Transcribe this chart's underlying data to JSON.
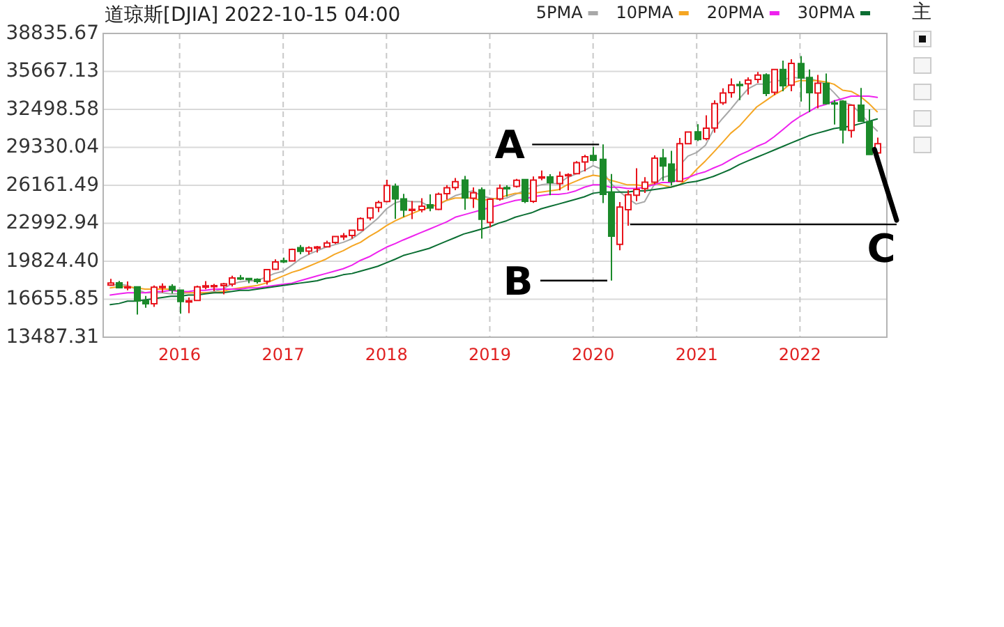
{
  "chart_data": {
    "type": "candlestick",
    "title": "道琼斯[DJIA] 2022-10-15 04:00",
    "x": [
      "2015-05",
      "2015-06",
      "2015-07",
      "2015-08",
      "2015-09",
      "2015-10",
      "2015-11",
      "2015-12",
      "2016-01",
      "2016-02",
      "2016-03",
      "2016-04",
      "2016-05",
      "2016-06",
      "2016-07",
      "2016-08",
      "2016-09",
      "2016-10",
      "2016-11",
      "2016-12",
      "2017-01",
      "2017-02",
      "2017-03",
      "2017-04",
      "2017-05",
      "2017-06",
      "2017-07",
      "2017-08",
      "2017-09",
      "2017-10",
      "2017-11",
      "2017-12",
      "2018-01",
      "2018-02",
      "2018-03",
      "2018-04",
      "2018-05",
      "2018-06",
      "2018-07",
      "2018-08",
      "2018-09",
      "2018-10",
      "2018-11",
      "2018-12",
      "2019-01",
      "2019-02",
      "2019-03",
      "2019-04",
      "2019-05",
      "2019-06",
      "2019-07",
      "2019-08",
      "2019-09",
      "2019-10",
      "2019-11",
      "2019-12",
      "2020-01",
      "2020-02",
      "2020-03",
      "2020-04",
      "2020-05",
      "2020-06",
      "2020-07",
      "2020-08",
      "2020-09",
      "2020-10",
      "2020-11",
      "2020-12",
      "2021-01",
      "2021-02",
      "2021-03",
      "2021-04",
      "2021-05",
      "2021-06",
      "2021-07",
      "2021-08",
      "2021-09",
      "2021-10",
      "2021-11",
      "2021-12",
      "2022-01",
      "2022-02",
      "2022-03",
      "2022-04",
      "2022-05",
      "2022-06",
      "2022-07",
      "2022-08",
      "2022-09",
      "2022-10"
    ],
    "ohlc": [
      [
        17840,
        18350,
        17790,
        18010
      ],
      [
        18020,
        18180,
        17580,
        17620
      ],
      [
        17640,
        18140,
        17400,
        17690
      ],
      [
        17690,
        17740,
        15370,
        16530
      ],
      [
        16510,
        16930,
        15940,
        16280
      ],
      [
        16280,
        17800,
        16010,
        17660
      ],
      [
        17680,
        17980,
        17210,
        17720
      ],
      [
        17720,
        17900,
        17140,
        17430
      ],
      [
        17410,
        17410,
        15450,
        16470
      ],
      [
        16450,
        16800,
        15500,
        16520
      ],
      [
        16550,
        17790,
        16550,
        17690
      ],
      [
        17660,
        18170,
        17480,
        17770
      ],
      [
        17780,
        17940,
        17330,
        17790
      ],
      [
        17790,
        18020,
        17060,
        17930
      ],
      [
        17920,
        18620,
        17710,
        18430
      ],
      [
        18430,
        18670,
        18250,
        18400
      ],
      [
        18390,
        18450,
        17990,
        18310
      ],
      [
        18310,
        18400,
        17960,
        18140
      ],
      [
        18160,
        19160,
        17880,
        19120
      ],
      [
        19150,
        19990,
        19080,
        19760
      ],
      [
        19870,
        20130,
        19680,
        19860
      ],
      [
        19850,
        20890,
        19830,
        20810
      ],
      [
        20960,
        21170,
        20410,
        20660
      ],
      [
        20670,
        21070,
        20380,
        20940
      ],
      [
        20960,
        21110,
        20550,
        21010
      ],
      [
        21030,
        21540,
        20990,
        21350
      ],
      [
        21390,
        21930,
        21280,
        21890
      ],
      [
        21920,
        22180,
        21600,
        21950
      ],
      [
        21980,
        22420,
        21710,
        22410
      ],
      [
        22420,
        23490,
        22420,
        23380
      ],
      [
        23440,
        24330,
        23240,
        24270
      ],
      [
        24310,
        24880,
        23920,
        24720
      ],
      [
        24810,
        26620,
        24740,
        26150
      ],
      [
        26080,
        26310,
        23360,
        25030
      ],
      [
        25030,
        25450,
        23510,
        24100
      ],
      [
        24080,
        24860,
        23340,
        24160
      ],
      [
        24120,
        25090,
        23910,
        24420
      ],
      [
        24540,
        25400,
        24000,
        24270
      ],
      [
        24160,
        25550,
        24080,
        25420
      ],
      [
        25460,
        26170,
        24970,
        25960
      ],
      [
        25970,
        26770,
        25750,
        26460
      ],
      [
        26600,
        26950,
        24120,
        25120
      ],
      [
        25080,
        25980,
        24270,
        25540
      ],
      [
        25780,
        25980,
        21710,
        23330
      ],
      [
        23060,
        25080,
        22640,
        25000
      ],
      [
        25030,
        26240,
        24880,
        25920
      ],
      [
        25970,
        26160,
        25210,
        25930
      ],
      [
        26080,
        26700,
        25970,
        26590
      ],
      [
        26640,
        26640,
        24680,
        24820
      ],
      [
        24820,
        26910,
        24690,
        26600
      ],
      [
        26810,
        27400,
        26590,
        26860
      ],
      [
        26860,
        27090,
        25340,
        26400
      ],
      [
        26300,
        27310,
        25740,
        26920
      ],
      [
        26960,
        27160,
        25740,
        27050
      ],
      [
        27140,
        28180,
        27080,
        28050
      ],
      [
        28110,
        28700,
        27330,
        28540
      ],
      [
        28640,
        29370,
        28170,
        28260
      ],
      [
        28320,
        29570,
        24680,
        25410
      ],
      [
        25590,
        27100,
        18210,
        21920
      ],
      [
        21230,
        24760,
        20740,
        24350
      ],
      [
        24120,
        25760,
        22790,
        25380
      ],
      [
        25340,
        27580,
        24840,
        25810
      ],
      [
        25880,
        26840,
        25520,
        26430
      ],
      [
        26420,
        28660,
        26250,
        28430
      ],
      [
        28440,
        29200,
        26540,
        27780
      ],
      [
        27940,
        29040,
        26140,
        26500
      ],
      [
        26500,
        30120,
        26500,
        29640
      ],
      [
        29640,
        30640,
        29570,
        30610
      ],
      [
        30630,
        31270,
        29860,
        29980
      ],
      [
        30050,
        32010,
        29910,
        30930
      ],
      [
        30950,
        33260,
        30550,
        32980
      ],
      [
        33050,
        34260,
        32880,
        33870
      ],
      [
        33900,
        35090,
        33470,
        34530
      ],
      [
        34580,
        34850,
        33270,
        34500
      ],
      [
        34630,
        35170,
        33740,
        34940
      ],
      [
        35000,
        35630,
        34690,
        35360
      ],
      [
        35370,
        35510,
        33610,
        33840
      ],
      [
        33920,
        35890,
        33690,
        35820
      ],
      [
        35830,
        36570,
        34010,
        34480
      ],
      [
        34520,
        36680,
        34010,
        36340
      ],
      [
        36320,
        36950,
        33150,
        35130
      ],
      [
        35160,
        35820,
        32270,
        33890
      ],
      [
        33870,
        35370,
        32580,
        34680
      ],
      [
        34660,
        35490,
        32910,
        32980
      ],
      [
        33040,
        33270,
        31230,
        32990
      ],
      [
        33160,
        33270,
        29650,
        30780
      ],
      [
        30740,
        32910,
        30140,
        32850
      ],
      [
        32850,
        34280,
        31510,
        31510
      ],
      [
        31450,
        32500,
        28720,
        28730
      ],
      [
        28860,
        30140,
        28660,
        29630
      ]
    ],
    "series": [
      {
        "name": "5PMA",
        "type": "line",
        "color": "#a8a8a8",
        "values": [
          17800,
          17900,
          17800,
          17500,
          17200,
          17200,
          17200,
          17100,
          17100,
          17200,
          17200,
          17200,
          17300,
          17500,
          17900,
          18100,
          18200,
          18200,
          18500,
          18800,
          19000,
          19500,
          20000,
          20400,
          20700,
          21000,
          21200,
          21400,
          21700,
          22200,
          22800,
          23400,
          24200,
          24700,
          24900,
          24800,
          24800,
          24400,
          24500,
          24900,
          25300,
          25500,
          25700,
          25300,
          25100,
          25000,
          25100,
          25400,
          25700,
          26000,
          26200,
          26300,
          26300,
          26800,
          27100,
          27400,
          27800,
          27500,
          26400,
          25700,
          25100,
          24600,
          24800,
          26100,
          26800,
          27000,
          27800,
          28600,
          28900,
          29500,
          30800,
          31700,
          32500,
          33400,
          34200,
          34600,
          34600,
          34900,
          34900,
          35200,
          35100,
          35100,
          34900,
          34600,
          33900,
          33100,
          32900,
          32200,
          31400,
          30700
        ]
      },
      {
        "name": "10PMA",
        "type": "line",
        "color": "#f5a623",
        "values": [
          17600,
          17700,
          17700,
          17600,
          17500,
          17500,
          17500,
          17500,
          17300,
          17200,
          17200,
          17200,
          17200,
          17300,
          17500,
          17600,
          17700,
          17800,
          18000,
          18300,
          18600,
          18900,
          19100,
          19400,
          19700,
          20000,
          20400,
          20700,
          21100,
          21400,
          21900,
          22300,
          22800,
          23200,
          23500,
          23800,
          24100,
          24300,
          24600,
          24900,
          25100,
          25100,
          25100,
          24900,
          25000,
          25100,
          25300,
          25500,
          25500,
          25500,
          25600,
          25700,
          25800,
          26200,
          26500,
          26800,
          27000,
          26900,
          26600,
          26400,
          26200,
          26200,
          26100,
          26300,
          26200,
          26000,
          26200,
          26700,
          27500,
          28200,
          28900,
          29700,
          30500,
          31100,
          31900,
          32700,
          33200,
          33700,
          34100,
          34700,
          34900,
          34900,
          34900,
          34800,
          34600,
          34100,
          34000,
          33600,
          33000,
          32300
        ]
      },
      {
        "name": "20PMA",
        "type": "line",
        "color": "#ee22ee",
        "values": [
          17000,
          17100,
          17200,
          17200,
          17200,
          17300,
          17300,
          17400,
          17300,
          17300,
          17400,
          17400,
          17500,
          17500,
          17500,
          17500,
          17600,
          17600,
          17700,
          17800,
          17900,
          18000,
          18200,
          18400,
          18600,
          18800,
          19000,
          19200,
          19500,
          19900,
          20200,
          20600,
          21000,
          21300,
          21600,
          21900,
          22200,
          22500,
          22800,
          23100,
          23500,
          23700,
          23900,
          24100,
          24300,
          24500,
          24700,
          24900,
          25000,
          25200,
          25300,
          25400,
          25400,
          25500,
          25700,
          26000,
          26200,
          26200,
          26000,
          26000,
          25900,
          25900,
          26000,
          26200,
          26400,
          26400,
          26600,
          26800,
          27100,
          27300,
          27600,
          27900,
          28300,
          28700,
          29000,
          29400,
          29700,
          30200,
          30800,
          31400,
          31900,
          32300,
          32700,
          32900,
          33200,
          33400,
          33600,
          33600,
          33600,
          33500
        ]
      },
      {
        "name": "30PMA",
        "type": "line",
        "color": "#0a6e32",
        "values": [
          16200,
          16300,
          16500,
          16500,
          16600,
          16700,
          16800,
          16900,
          16900,
          17000,
          17000,
          17100,
          17200,
          17200,
          17300,
          17400,
          17400,
          17500,
          17600,
          17700,
          17800,
          17900,
          18000,
          18100,
          18200,
          18400,
          18500,
          18700,
          18800,
          19000,
          19200,
          19400,
          19700,
          20000,
          20300,
          20500,
          20700,
          20900,
          21200,
          21500,
          21800,
          22100,
          22300,
          22500,
          22700,
          23000,
          23200,
          23500,
          23700,
          23900,
          24200,
          24400,
          24600,
          24800,
          25000,
          25200,
          25500,
          25600,
          25600,
          25600,
          25600,
          25700,
          25700,
          25800,
          25900,
          26000,
          26200,
          26400,
          26500,
          26700,
          26900,
          27200,
          27500,
          27900,
          28200,
          28500,
          28800,
          29100,
          29400,
          29700,
          30000,
          30300,
          30500,
          30700,
          30900,
          31000,
          31100,
          31300,
          31500,
          31700
        ]
      }
    ],
    "xlim": [
      "2015-04-06",
      "2022-11-04"
    ],
    "xticks": [
      "2016",
      "2017",
      "2018",
      "2019",
      "2020",
      "2021",
      "2022"
    ],
    "ylim": [
      13487.31,
      38835.67
    ],
    "yticks": [
      13487.31,
      16655.85,
      {
        "value": 19824.4,
        "label": "19824.40"
      },
      22992.94,
      26161.49,
      29330.04,
      32498.58,
      35667.13,
      38835.67
    ],
    "grid": true,
    "legend": "top right",
    "ref_lines": [
      {
        "axis": "y",
        "value": 22900,
        "label": "C",
        "color": "#000000"
      }
    ],
    "annotations": [
      {
        "text": "A",
        "x": "2020-02",
        "y": 29570
      },
      {
        "text": "B",
        "x": "2020-03",
        "y": 18210
      },
      "主"
    ]
  }
}
